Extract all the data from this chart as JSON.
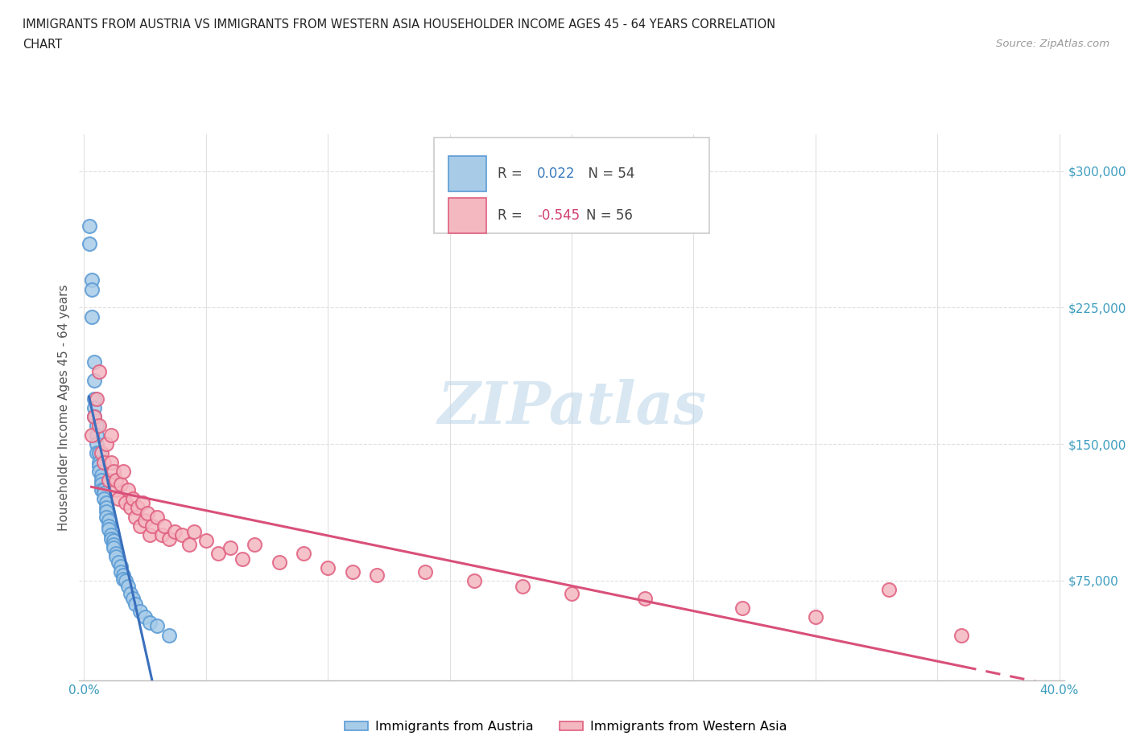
{
  "title_line1": "IMMIGRANTS FROM AUSTRIA VS IMMIGRANTS FROM WESTERN ASIA HOUSEHOLDER INCOME AGES 45 - 64 YEARS CORRELATION",
  "title_line2": "CHART",
  "source_text": "Source: ZipAtlas.com",
  "ylabel": "Householder Income Ages 45 - 64 years",
  "xlim": [
    -0.002,
    0.402
  ],
  "ylim": [
    20000,
    320000
  ],
  "yticks": [
    75000,
    150000,
    225000,
    300000
  ],
  "ytick_labels": [
    "$75,000",
    "$150,000",
    "$225,000",
    "$300,000"
  ],
  "xticks": [
    0.0,
    0.05,
    0.1,
    0.15,
    0.2,
    0.25,
    0.3,
    0.35,
    0.4
  ],
  "austria_color": "#a8cce8",
  "austria_edge_color": "#5b9bd5",
  "western_asia_color": "#f4b8c1",
  "western_asia_edge_color": "#e06080",
  "austria_line_color": "#3a6fbd",
  "western_asia_line_color": "#d9507a",
  "austria_R": 0.022,
  "austria_N": 54,
  "western_asia_R": -0.545,
  "western_asia_N": 56,
  "austria_x": [
    0.002,
    0.002,
    0.003,
    0.003,
    0.003,
    0.004,
    0.004,
    0.004,
    0.004,
    0.004,
    0.005,
    0.005,
    0.005,
    0.005,
    0.006,
    0.006,
    0.006,
    0.006,
    0.007,
    0.007,
    0.007,
    0.007,
    0.008,
    0.008,
    0.008,
    0.009,
    0.009,
    0.009,
    0.009,
    0.01,
    0.01,
    0.01,
    0.011,
    0.011,
    0.012,
    0.012,
    0.012,
    0.013,
    0.013,
    0.014,
    0.015,
    0.015,
    0.016,
    0.016,
    0.017,
    0.018,
    0.019,
    0.02,
    0.021,
    0.023,
    0.025,
    0.027,
    0.03,
    0.035
  ],
  "austria_y": [
    270000,
    260000,
    240000,
    235000,
    220000,
    195000,
    185000,
    175000,
    170000,
    165000,
    160000,
    155000,
    150000,
    145000,
    145000,
    140000,
    138000,
    135000,
    133000,
    130000,
    128000,
    125000,
    125000,
    123000,
    120000,
    118000,
    115000,
    113000,
    110000,
    108000,
    105000,
    103000,
    100000,
    98000,
    97000,
    95000,
    93000,
    90000,
    88000,
    85000,
    83000,
    80000,
    78000,
    76000,
    75000,
    72000,
    68000,
    65000,
    62000,
    58000,
    55000,
    52000,
    50000,
    45000
  ],
  "western_asia_x": [
    0.003,
    0.004,
    0.005,
    0.006,
    0.006,
    0.007,
    0.008,
    0.009,
    0.01,
    0.011,
    0.011,
    0.012,
    0.013,
    0.013,
    0.014,
    0.015,
    0.016,
    0.017,
    0.018,
    0.019,
    0.02,
    0.021,
    0.022,
    0.023,
    0.024,
    0.025,
    0.026,
    0.027,
    0.028,
    0.03,
    0.032,
    0.033,
    0.035,
    0.037,
    0.04,
    0.043,
    0.045,
    0.05,
    0.055,
    0.06,
    0.065,
    0.07,
    0.08,
    0.09,
    0.1,
    0.11,
    0.12,
    0.14,
    0.16,
    0.18,
    0.2,
    0.23,
    0.27,
    0.3,
    0.33,
    0.36
  ],
  "western_asia_y": [
    155000,
    165000,
    175000,
    160000,
    190000,
    145000,
    140000,
    150000,
    130000,
    140000,
    155000,
    135000,
    125000,
    130000,
    120000,
    128000,
    135000,
    118000,
    125000,
    115000,
    120000,
    110000,
    115000,
    105000,
    118000,
    108000,
    112000,
    100000,
    105000,
    110000,
    100000,
    105000,
    98000,
    102000,
    100000,
    95000,
    102000,
    97000,
    90000,
    93000,
    87000,
    95000,
    85000,
    90000,
    82000,
    80000,
    78000,
    80000,
    75000,
    72000,
    68000,
    65000,
    60000,
    55000,
    70000,
    45000
  ],
  "watermark": "ZIPatlas",
  "background_color": "#ffffff",
  "grid_color": "#e0e0e0"
}
